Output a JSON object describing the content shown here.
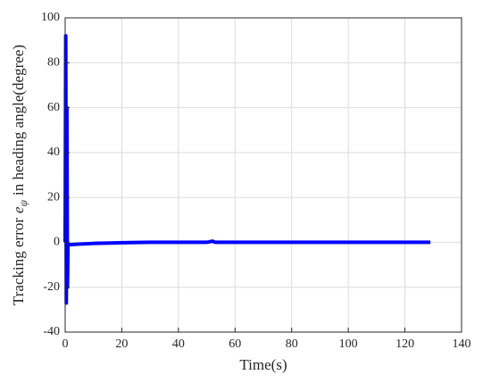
{
  "chart_data": {
    "type": "line",
    "xlabel": "Time(s)",
    "ylabel": [
      "Tracking error",
      "e",
      "ψ",
      "in heading angle(degree)"
    ],
    "x": [
      0,
      0.2,
      0.4,
      0.6,
      0.8,
      1,
      2,
      5,
      10,
      20,
      30,
      40,
      50,
      52,
      53,
      60,
      80,
      100,
      120,
      129
    ],
    "series": [
      {
        "color": "#0000ff",
        "values": [
          0,
          92,
          -27,
          60,
          -20,
          -1,
          -1,
          -0.8,
          -0.5,
          -0.2,
          0,
          0,
          0,
          0.5,
          0,
          0,
          0,
          0,
          0,
          0
        ]
      }
    ],
    "xlim": [
      0,
      140
    ],
    "xticks": [
      0,
      20,
      40,
      60,
      80,
      100,
      120,
      140
    ],
    "ylim": [
      -40,
      100
    ],
    "yticks": [
      -40,
      -20,
      0,
      20,
      40,
      60,
      80,
      100
    ],
    "grid": true
  }
}
